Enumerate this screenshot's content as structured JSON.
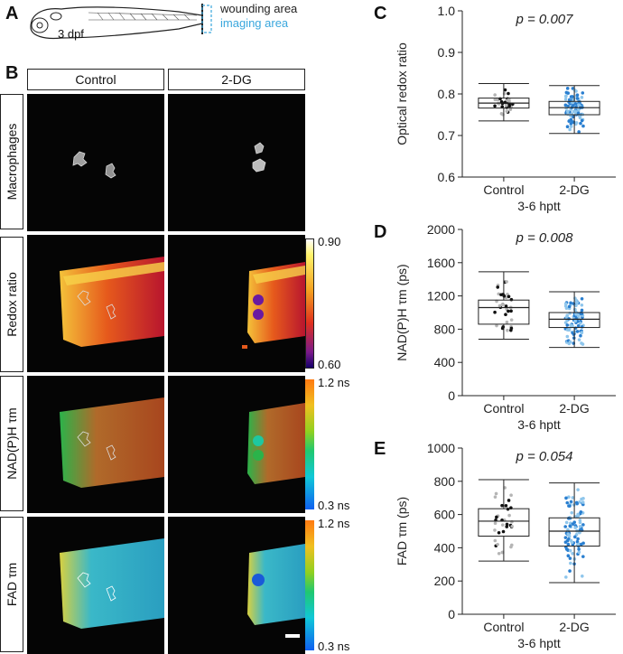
{
  "panel_letters": {
    "a": "A",
    "b": "B",
    "c": "C",
    "d": "D",
    "e": "E"
  },
  "schematic": {
    "age_label": "3 dpf",
    "wounding_label": "wounding area",
    "imaging_label": "imaging area",
    "wounding_color": "#222222",
    "imaging_color": "#3aa7dd"
  },
  "columns": [
    "Control",
    "2-DG"
  ],
  "rows": [
    "Macrophages",
    "Redox ratio",
    "NAD(P)H τm",
    "FAD τm"
  ],
  "colorbars": {
    "redox": {
      "max": "0.90",
      "min": "0.60"
    },
    "nadh": {
      "max": "1.2 ns",
      "min": "0.3 ns"
    },
    "fad": {
      "max": "1.2 ns",
      "min": "0.3 ns"
    }
  },
  "colors": {
    "control_points": "#111111",
    "control_points_light": "#b5b5b5",
    "dg_points": "#2a7fd0",
    "dg_points_light": "#8fc6ec"
  },
  "chart_data": [
    {
      "type": "box",
      "panel": "C",
      "title": "p = 0.007",
      "ylabel": "Optical redox ratio",
      "xlabel": "3-6 hptt",
      "categories": [
        "Control",
        "2-DG"
      ],
      "ylim": [
        0.6,
        1.0
      ],
      "yticks": [
        "0.6",
        "0.7",
        "0.8",
        "0.9",
        "1.0"
      ],
      "yticks_values": [
        0.6,
        0.7,
        0.8,
        0.9,
        1.0
      ],
      "series": [
        {
          "name": "Control",
          "whisker_low": 0.735,
          "q1": 0.766,
          "median": 0.778,
          "q3": 0.79,
          "whisker_high": 0.825,
          "n": 34
        },
        {
          "name": "2-DG",
          "whisker_low": 0.705,
          "q1": 0.75,
          "median": 0.767,
          "q3": 0.782,
          "whisker_high": 0.82,
          "n": 95
        }
      ]
    },
    {
      "type": "box",
      "panel": "D",
      "title": "p = 0.008",
      "ylabel": "NAD(P)H τm (ps)",
      "xlabel": "3-6 hptt",
      "categories": [
        "Control",
        "2-DG"
      ],
      "ylim": [
        0,
        2000
      ],
      "yticks": [
        "0",
        "400",
        "800",
        "1200",
        "1600",
        "2000"
      ],
      "yticks_values": [
        0,
        400,
        800,
        1200,
        1600,
        2000
      ],
      "series": [
        {
          "name": "Control",
          "whisker_low": 680,
          "q1": 860,
          "median": 1060,
          "q3": 1150,
          "whisker_high": 1490,
          "n": 34
        },
        {
          "name": "2-DG",
          "whisker_low": 580,
          "q1": 820,
          "median": 920,
          "q3": 1000,
          "whisker_high": 1250,
          "n": 95
        }
      ]
    },
    {
      "type": "box",
      "panel": "E",
      "title": "p = 0.054",
      "ylabel": "FAD τm (ps)",
      "xlabel": "3-6 hptt",
      "categories": [
        "Control",
        "2-DG"
      ],
      "ylim": [
        0,
        1000
      ],
      "yticks": [
        "0",
        "200",
        "400",
        "600",
        "800",
        "1000"
      ],
      "yticks_values": [
        0,
        200,
        400,
        600,
        800,
        1000
      ],
      "series": [
        {
          "name": "Control",
          "whisker_low": 320,
          "q1": 470,
          "median": 560,
          "q3": 635,
          "whisker_high": 810,
          "n": 34
        },
        {
          "name": "2-DG",
          "whisker_low": 190,
          "q1": 410,
          "median": 500,
          "q3": 580,
          "whisker_high": 790,
          "n": 95
        }
      ]
    }
  ]
}
